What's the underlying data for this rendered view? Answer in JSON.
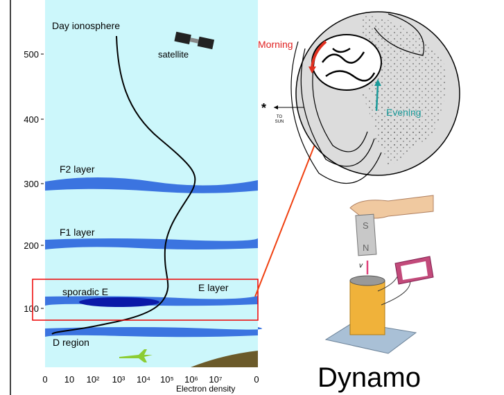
{
  "plot": {
    "title": "Day  ionosphere",
    "satellite_label": "satellite",
    "y_labels": [
      "500",
      "400",
      "300",
      "200",
      "100"
    ],
    "layers": {
      "f2": "F2 layer",
      "f1": "F1 layer",
      "sporadic": "sporadic E",
      "e": "E layer",
      "d": "D region"
    },
    "x_labels": [
      "0",
      "10",
      "10²",
      "10³",
      "10⁴",
      "10⁵",
      "10⁶",
      "10⁷",
      "0"
    ],
    "x_axis_label": "Electron density"
  },
  "globe": {
    "morning": "Morning",
    "evening": "Evening",
    "star": "*",
    "to_sun": [
      "TO",
      "SUN"
    ]
  },
  "magnet": {
    "south": "S",
    "north": "N",
    "velocity": "v"
  },
  "caption": "Dynamo"
}
